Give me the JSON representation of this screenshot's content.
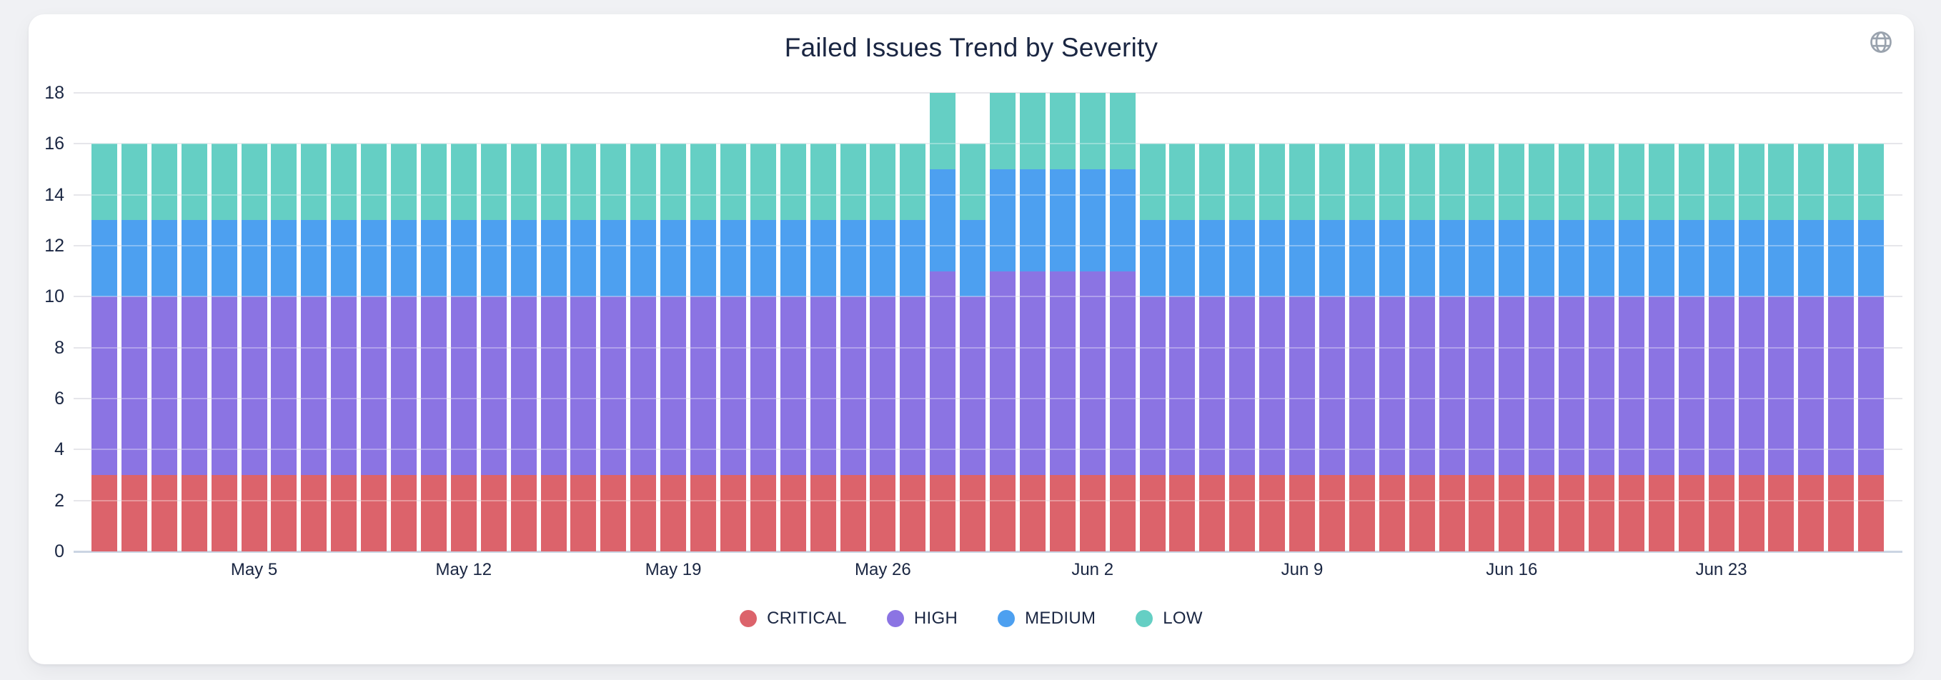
{
  "header": {
    "title": "Failed Issues Trend by Severity",
    "action_icon": "globe-icon"
  },
  "colors": {
    "text": "#1a2642",
    "gridline": "#e6e6ea",
    "axis_baseline": "#cbd5e3",
    "card_background": "#ffffff",
    "page_background": "#f0f1f4",
    "icon": "#9aa3ae"
  },
  "chart_data": {
    "type": "bar",
    "stacked": true,
    "title": "Failed Issues Trend by Severity",
    "xlabel": "",
    "ylabel": "",
    "ylim": [
      0,
      18
    ],
    "ytick_step": 2,
    "yticks": [
      0,
      2,
      4,
      6,
      8,
      10,
      12,
      14,
      16,
      18
    ],
    "grid": true,
    "legend_position": "bottom",
    "x": [
      "Apr 30",
      "May 1",
      "May 2",
      "May 3",
      "May 4",
      "May 5",
      "May 6",
      "May 7",
      "May 8",
      "May 9",
      "May 10",
      "May 11",
      "May 12",
      "May 13",
      "May 14",
      "May 15",
      "May 16",
      "May 17",
      "May 18",
      "May 19",
      "May 20",
      "May 21",
      "May 22",
      "May 23",
      "May 24",
      "May 25",
      "May 26",
      "May 27",
      "May 28",
      "May 29",
      "May 30",
      "May 31",
      "Jun 1",
      "Jun 2",
      "Jun 3",
      "Jun 4",
      "Jun 5",
      "Jun 6",
      "Jun 7",
      "Jun 8",
      "Jun 9",
      "Jun 10",
      "Jun 11",
      "Jun 12",
      "Jun 13",
      "Jun 14",
      "Jun 15",
      "Jun 16",
      "Jun 17",
      "Jun 18",
      "Jun 19",
      "Jun 20",
      "Jun 21",
      "Jun 22",
      "Jun 23",
      "Jun 24",
      "Jun 25",
      "Jun 26",
      "Jun 27",
      "Jun 28"
    ],
    "x_ticks": [
      {
        "index": 5,
        "label": "May 5"
      },
      {
        "index": 12,
        "label": "May 12"
      },
      {
        "index": 19,
        "label": "May 19"
      },
      {
        "index": 26,
        "label": "May 26"
      },
      {
        "index": 33,
        "label": "Jun 2"
      },
      {
        "index": 40,
        "label": "Jun 9"
      },
      {
        "index": 47,
        "label": "Jun 16"
      },
      {
        "index": 54,
        "label": "Jun 23"
      }
    ],
    "series": [
      {
        "name": "CRITICAL",
        "color": "#DC636B",
        "values": [
          3,
          3,
          3,
          3,
          3,
          3,
          3,
          3,
          3,
          3,
          3,
          3,
          3,
          3,
          3,
          3,
          3,
          3,
          3,
          3,
          3,
          3,
          3,
          3,
          3,
          3,
          3,
          3,
          3,
          3,
          3,
          3,
          3,
          3,
          3,
          3,
          3,
          3,
          3,
          3,
          3,
          3,
          3,
          3,
          3,
          3,
          3,
          3,
          3,
          3,
          3,
          3,
          3,
          3,
          3,
          3,
          3,
          3,
          3,
          3
        ]
      },
      {
        "name": "HIGH",
        "color": "#8B74E3",
        "values": [
          7,
          7,
          7,
          7,
          7,
          7,
          7,
          7,
          7,
          7,
          7,
          7,
          7,
          7,
          7,
          7,
          7,
          7,
          7,
          7,
          7,
          7,
          7,
          7,
          7,
          7,
          7,
          7,
          8,
          7,
          8,
          8,
          8,
          8,
          8,
          7,
          7,
          7,
          7,
          7,
          7,
          7,
          7,
          7,
          7,
          7,
          7,
          7,
          7,
          7,
          7,
          7,
          7,
          7,
          7,
          7,
          7,
          7,
          7,
          7
        ]
      },
      {
        "name": "MEDIUM",
        "color": "#4DA0F0",
        "values": [
          3,
          3,
          3,
          3,
          3,
          3,
          3,
          3,
          3,
          3,
          3,
          3,
          3,
          3,
          3,
          3,
          3,
          3,
          3,
          3,
          3,
          3,
          3,
          3,
          3,
          3,
          3,
          3,
          4,
          3,
          4,
          4,
          4,
          4,
          4,
          3,
          3,
          3,
          3,
          3,
          3,
          3,
          3,
          3,
          3,
          3,
          3,
          3,
          3,
          3,
          3,
          3,
          3,
          3,
          3,
          3,
          3,
          3,
          3,
          3
        ]
      },
      {
        "name": "LOW",
        "color": "#65CFC4",
        "values": [
          3,
          3,
          3,
          3,
          3,
          3,
          3,
          3,
          3,
          3,
          3,
          3,
          3,
          3,
          3,
          3,
          3,
          3,
          3,
          3,
          3,
          3,
          3,
          3,
          3,
          3,
          3,
          3,
          3,
          3,
          3,
          3,
          3,
          3,
          3,
          3,
          3,
          3,
          3,
          3,
          3,
          3,
          3,
          3,
          3,
          3,
          3,
          3,
          3,
          3,
          3,
          3,
          3,
          3,
          3,
          3,
          3,
          3,
          3,
          3
        ]
      }
    ],
    "legend": [
      "CRITICAL",
      "HIGH",
      "MEDIUM",
      "LOW"
    ]
  }
}
